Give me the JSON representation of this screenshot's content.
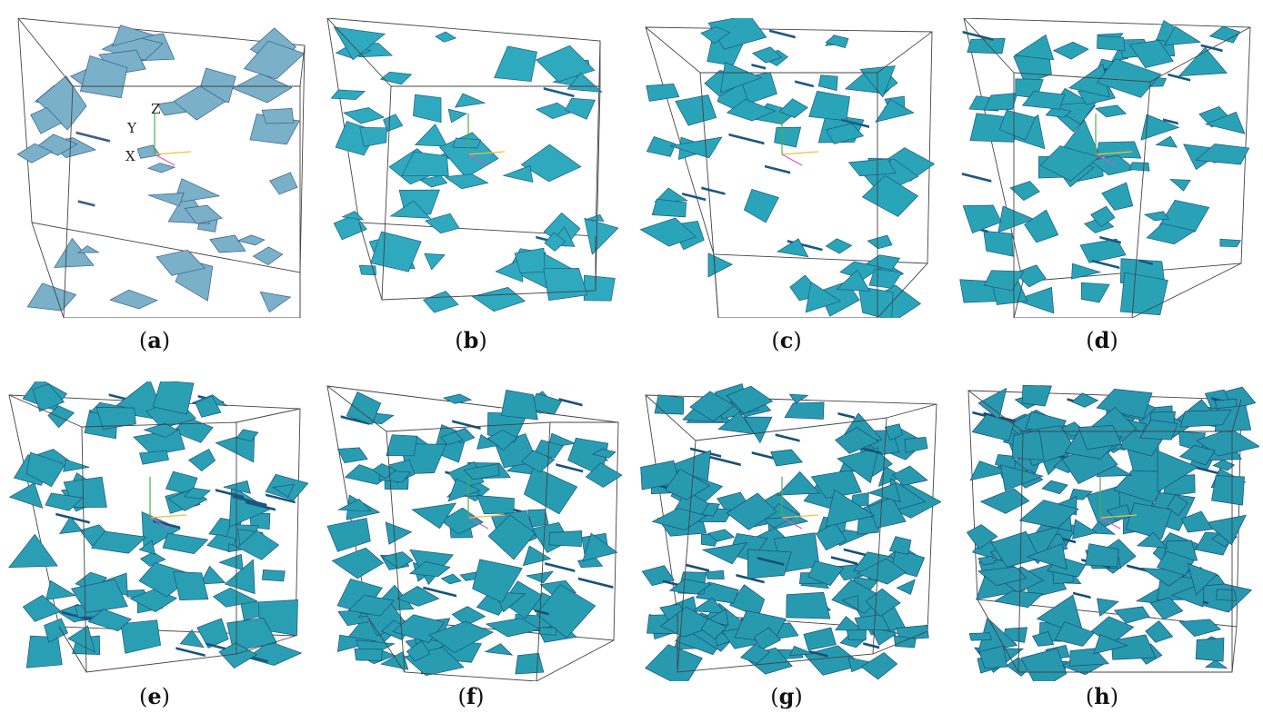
{
  "panels": [
    {
      "id": "a",
      "caption_letter": "a",
      "fill": "#7ab0c8",
      "edge": "#3a5f8a"
    },
    {
      "id": "b",
      "caption_letter": "b",
      "fill": "#2fa9be",
      "edge": "#1d5e86"
    },
    {
      "id": "c",
      "caption_letter": "c",
      "fill": "#2aa4b8",
      "edge": "#1b5a82"
    },
    {
      "id": "d",
      "caption_letter": "d",
      "fill": "#2aa2b6",
      "edge": "#1a5880"
    },
    {
      "id": "e",
      "caption_letter": "e",
      "fill": "#2a9fb4",
      "edge": "#1a557d"
    },
    {
      "id": "f",
      "caption_letter": "f",
      "fill": "#289db2",
      "edge": "#19537b"
    },
    {
      "id": "g",
      "caption_letter": "g",
      "fill": "#289ab0",
      "edge": "#185078"
    },
    {
      "id": "h",
      "caption_letter": "h",
      "fill": "#2898ae",
      "edge": "#184e76"
    }
  ],
  "axis_labels": {
    "x": "X",
    "y": "Y",
    "z": "Z"
  },
  "fracture_counts": [
    40,
    55,
    65,
    80,
    95,
    115,
    140,
    165
  ]
}
